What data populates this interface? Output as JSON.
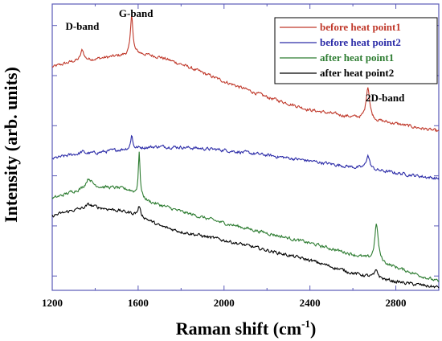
{
  "chart_data": {
    "type": "line",
    "xlabel": "Raman shift (cm",
    "xlabel_sup": "-1",
    "xlabel_close": ")",
    "ylabel": "Intensity (arb. units)",
    "xlim": [
      1200,
      3000
    ],
    "ylim": [
      0,
      100
    ],
    "xticks": [
      1200,
      1600,
      2000,
      2400,
      2800
    ],
    "xtick_labels": [
      "1200",
      "1600",
      "2000",
      "2400",
      "2800"
    ],
    "y_ticks_labeled": false,
    "grid": false,
    "legend_position": "top-right",
    "annotations": [
      {
        "text": "D-band",
        "x": 1340,
        "y": 91
      },
      {
        "text": "G-band",
        "x": 1590,
        "y": 95.5
      },
      {
        "text": "2D-band",
        "x": 2750,
        "y": 66
      }
    ],
    "series": [
      {
        "name": "before heat point1",
        "color": "#c0392b",
        "baseline": [
          [
            1200,
            78
          ],
          [
            1300,
            80
          ],
          [
            1400,
            80.8
          ],
          [
            1500,
            81.8
          ],
          [
            1600,
            82.8
          ],
          [
            1700,
            81.5
          ],
          [
            1800,
            79
          ],
          [
            2000,
            73
          ],
          [
            2200,
            67.5
          ],
          [
            2400,
            63
          ],
          [
            2600,
            60.5
          ],
          [
            2800,
            58.2
          ],
          [
            3000,
            55.5
          ]
        ],
        "peaks": [
          [
            1340,
            3.6,
            18
          ],
          [
            1570,
            14,
            13
          ],
          [
            2670,
            11.5,
            20
          ]
        ]
      },
      {
        "name": "before heat point2",
        "color": "#2c2ca8",
        "baseline": [
          [
            1200,
            46
          ],
          [
            1300,
            47.5
          ],
          [
            1400,
            48
          ],
          [
            1500,
            49
          ],
          [
            1600,
            49.8
          ],
          [
            1700,
            50.2
          ],
          [
            1800,
            50
          ],
          [
            2000,
            49
          ],
          [
            2200,
            47.2
          ],
          [
            2400,
            45.2
          ],
          [
            2600,
            43
          ],
          [
            2800,
            41
          ],
          [
            3000,
            39
          ]
        ],
        "peaks": [
          [
            1340,
            0.8,
            18
          ],
          [
            1570,
            5,
            10
          ],
          [
            2670,
            4.8,
            20
          ]
        ]
      },
      {
        "name": "after heat point1",
        "color": "#2e7d32",
        "baseline": [
          [
            1200,
            32
          ],
          [
            1300,
            34.5
          ],
          [
            1400,
            36
          ],
          [
            1500,
            35.8
          ],
          [
            1560,
            35
          ],
          [
            1650,
            31
          ],
          [
            1800,
            27.5
          ],
          [
            2000,
            23.5
          ],
          [
            2200,
            20
          ],
          [
            2400,
            16.5
          ],
          [
            2600,
            12.5
          ],
          [
            2800,
            8
          ],
          [
            3000,
            3
          ]
        ],
        "peaks": [
          [
            1370,
            3.5,
            35
          ],
          [
            1605,
            15,
            10
          ],
          [
            2710,
            13,
            20
          ]
        ]
      },
      {
        "name": "after heat point2",
        "color": "#000000",
        "baseline": [
          [
            1200,
            26
          ],
          [
            1300,
            28
          ],
          [
            1400,
            29
          ],
          [
            1500,
            28
          ],
          [
            1600,
            26.5
          ],
          [
            1700,
            22.5
          ],
          [
            1800,
            20.5
          ],
          [
            2000,
            17.5
          ],
          [
            2200,
            14
          ],
          [
            2400,
            10.5
          ],
          [
            2600,
            6
          ],
          [
            2800,
            3
          ],
          [
            3000,
            1
          ]
        ],
        "peaks": [
          [
            1370,
            1.2,
            35
          ],
          [
            1605,
            3.2,
            12
          ],
          [
            2710,
            2.5,
            20
          ]
        ]
      }
    ]
  }
}
